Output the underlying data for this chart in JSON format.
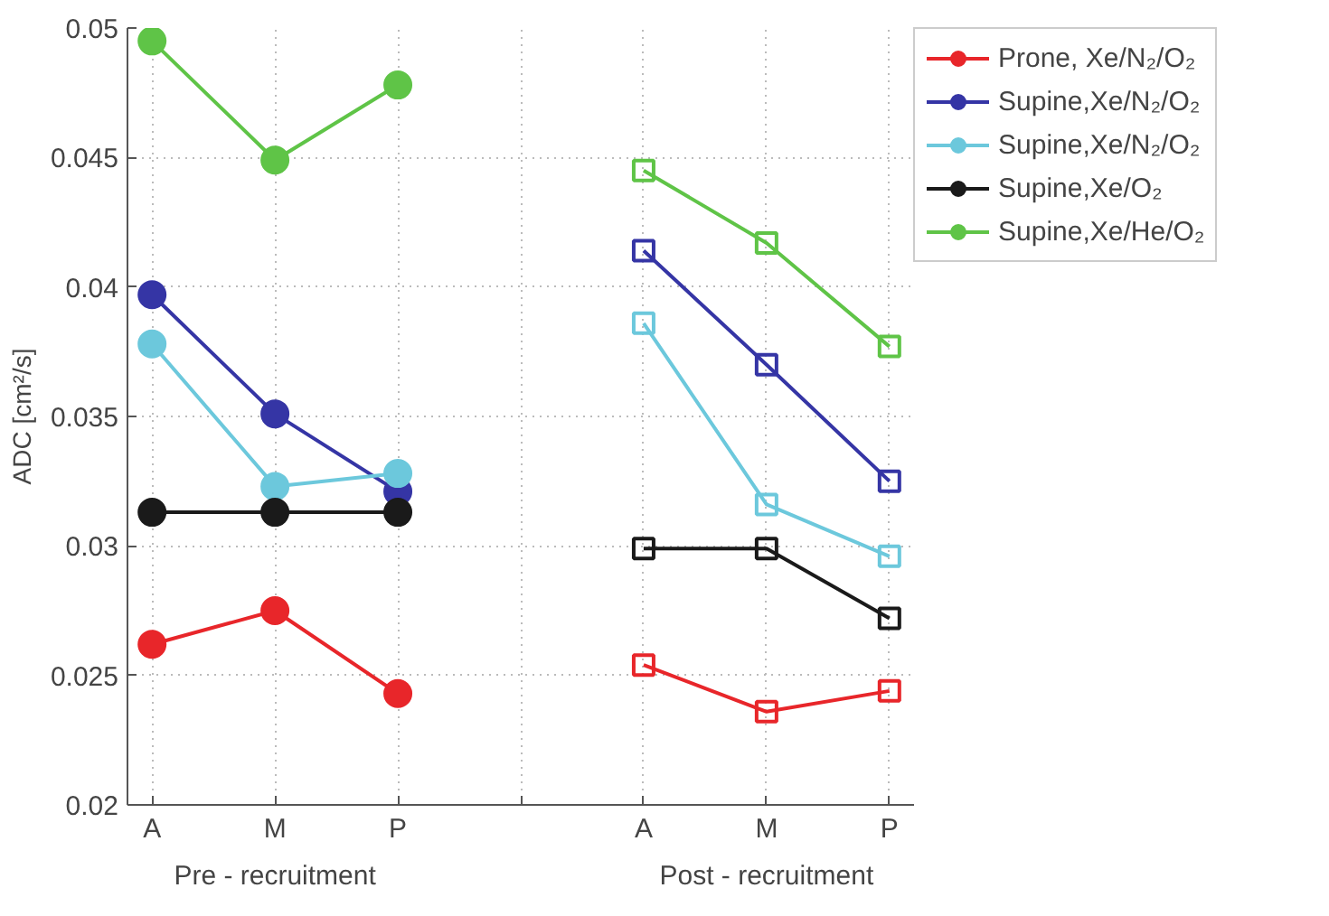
{
  "chart_data": {
    "type": "line",
    "categories": [
      "A",
      "M",
      "P",
      null,
      "A",
      "M",
      "P"
    ],
    "ylabel": "ADC [cm²/s]",
    "ylim": [
      0.02,
      0.05
    ],
    "yticks": [
      0.02,
      0.025,
      0.03,
      0.035,
      0.04,
      0.045,
      0.05
    ],
    "grid": true,
    "legend": "top right",
    "annotations": [
      "Pre - recruitment",
      "Post - recruitment"
    ],
    "series": [
      {
        "name": "Prone, Xe/N₂/O₂",
        "color": "#e8262a",
        "marker": "circle",
        "values": [
          0.0262,
          0.0275,
          0.0243,
          null,
          null,
          null,
          null
        ]
      },
      {
        "name": "Supine,Xe/N₂/O₂",
        "color": "#3535a5",
        "marker": "circle",
        "values": [
          0.0397,
          0.0351,
          0.0321,
          null,
          null,
          null,
          null
        ]
      },
      {
        "name": "Supine,Xe/N₂/O₂",
        "color": "#6cc8dc",
        "marker": "circle",
        "values": [
          0.0378,
          0.0323,
          0.0328,
          null,
          null,
          null,
          null
        ]
      },
      {
        "name": "Supine,Xe/O₂",
        "color": "#1a1a1a",
        "marker": "circle",
        "values": [
          0.0313,
          0.0313,
          0.0313,
          null,
          null,
          null,
          null
        ]
      },
      {
        "name": "Supine,Xe/He/O₂",
        "color": "#5fc447",
        "marker": "circle",
        "values": [
          0.0495,
          0.0449,
          0.0478,
          null,
          null,
          null,
          null
        ]
      },
      {
        "color": "#e8262a",
        "marker": "square",
        "values": [
          null,
          null,
          null,
          null,
          0.0254,
          0.0236,
          0.0244
        ]
      },
      {
        "color": "#3535a5",
        "marker": "square",
        "values": [
          null,
          null,
          null,
          null,
          0.0414,
          0.037,
          0.0325
        ]
      },
      {
        "color": "#6cc8dc",
        "marker": "square",
        "values": [
          null,
          null,
          null,
          null,
          0.0386,
          0.0316,
          0.0296
        ]
      },
      {
        "color": "#1a1a1a",
        "marker": "square",
        "values": [
          null,
          null,
          null,
          null,
          0.0299,
          0.0299,
          0.0272
        ]
      },
      {
        "color": "#5fc447",
        "marker": "square",
        "values": [
          null,
          null,
          null,
          null,
          0.0445,
          0.0417,
          0.0377
        ]
      }
    ]
  }
}
